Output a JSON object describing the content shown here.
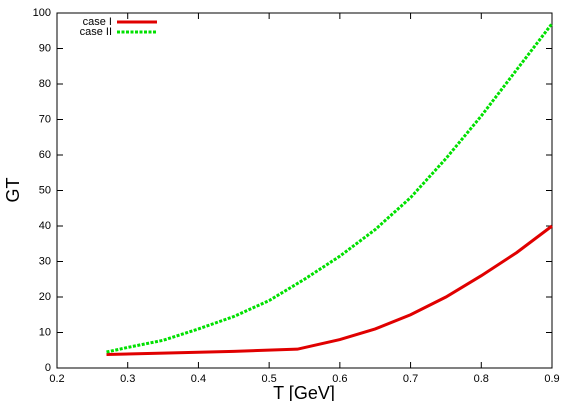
{
  "chart_data": {
    "type": "line",
    "xlabel": "T [GeV]",
    "ylabel": "GT",
    "xlim": [
      0.2,
      0.9
    ],
    "xticks": [
      0.2,
      0.3,
      0.4,
      0.5,
      0.6,
      0.7,
      0.8,
      0.9
    ],
    "ylim": [
      0,
      100
    ],
    "yticks": [
      0,
      10,
      20,
      30,
      40,
      50,
      60,
      70,
      80,
      90,
      100
    ],
    "legend": "top-left",
    "series": [
      {
        "name": "case I",
        "color": "#e00000",
        "dash": false,
        "x": [
          0.27,
          0.35,
          0.45,
          0.54,
          0.6,
          0.65,
          0.7,
          0.75,
          0.8,
          0.85,
          0.9
        ],
        "values": [
          3.8,
          4.2,
          4.7,
          5.3,
          8,
          11,
          15,
          20,
          26,
          32.5,
          40
        ]
      },
      {
        "name": "case II",
        "color": "#00e000",
        "dash": true,
        "x": [
          0.27,
          0.3,
          0.35,
          0.4,
          0.45,
          0.5,
          0.55,
          0.6,
          0.65,
          0.7,
          0.75,
          0.8,
          0.85,
          0.9
        ],
        "values": [
          4.5,
          5.8,
          7.8,
          11,
          14.5,
          19,
          25,
          31.5,
          39,
          48,
          59,
          71,
          84,
          97
        ]
      }
    ]
  }
}
